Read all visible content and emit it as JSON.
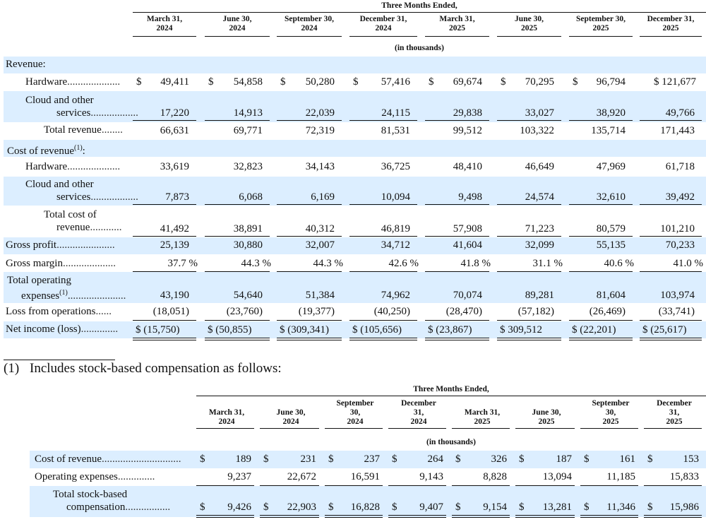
{
  "t1": {
    "header": "Three Months Ended,",
    "unit": "(in thousands)",
    "periods": [
      [
        "March 31,",
        "2024"
      ],
      [
        "June 30,",
        "2024"
      ],
      [
        "September 30,",
        "2024"
      ],
      [
        "December 31,",
        "2024"
      ],
      [
        "March 31,",
        "2025"
      ],
      [
        "June 30,",
        "2025"
      ],
      [
        "September 30,",
        "2025"
      ],
      [
        "December 31,",
        "2025"
      ]
    ],
    "rows": [
      {
        "label": [
          "Revenue:"
        ],
        "cells": []
      },
      {
        "label": [
          "Hardware"
        ],
        "cells": [
          "49,411",
          "54,858",
          "50,280",
          "57,416",
          "69,674",
          "70,295",
          "96,794",
          "$ 121,677"
        ],
        "cur": [
          "$",
          "$",
          "$",
          "$",
          "$",
          "$",
          "$",
          ""
        ]
      },
      {
        "label": [
          "Cloud and other",
          "services"
        ],
        "cells": [
          "17,220",
          "14,913",
          "22,039",
          "24,115",
          "29,838",
          "33,027",
          "38,920",
          "49,766"
        ]
      },
      {
        "label": [
          "Total revenue"
        ],
        "cells": [
          "66,631",
          "69,771",
          "72,319",
          "81,531",
          "99,512",
          "103,322",
          "135,714",
          "171,443"
        ]
      },
      {
        "label": [
          "Cost of revenue",
          "(1)",
          ":"
        ],
        "cells": []
      },
      {
        "label": [
          "Hardware"
        ],
        "cells": [
          "33,619",
          "32,823",
          "34,143",
          "36,725",
          "48,410",
          "46,649",
          "47,969",
          "61,718"
        ]
      },
      {
        "label": [
          "Cloud and other",
          "services"
        ],
        "cells": [
          "7,873",
          "6,068",
          "6,169",
          "10,094",
          "9,498",
          "24,574",
          "32,610",
          "39,492"
        ]
      },
      {
        "label": [
          "Total cost of",
          "revenue"
        ],
        "cells": [
          "41,492",
          "38,891",
          "40,312",
          "46,819",
          "57,908",
          "71,223",
          "80,579",
          "101,210"
        ]
      },
      {
        "label": [
          "Gross profit"
        ],
        "cells": [
          "25,139",
          "30,880",
          "32,007",
          "34,712",
          "41,604",
          "32,099",
          "55,135",
          "70,233"
        ]
      },
      {
        "label": [
          "Gross margin"
        ],
        "cells": [
          "37.7 %",
          "44.3 %",
          "44.3 %",
          "42.6 %",
          "41.8 %",
          "31.1 %",
          "40.6 %",
          "41.0 %"
        ]
      },
      {
        "label": [
          "Total operating",
          "expenses",
          "(1)"
        ],
        "cells": [
          "43,190",
          "54,640",
          "51,384",
          "74,962",
          "70,074",
          "89,281",
          "81,604",
          "103,974"
        ]
      },
      {
        "label": [
          "Loss from operations"
        ],
        "cells": [
          "(18,051)",
          "(23,760)",
          "(19,377)",
          "(40,250)",
          "(28,470)",
          "(57,182)",
          "(26,469)",
          "(33,741)"
        ]
      },
      {
        "label": [
          "Net income (loss)"
        ],
        "cells": [
          "$ (15,750)",
          "$ (50,855)",
          "$ (309,341)",
          "$ (105,656)",
          "$ (23,867)",
          "$ 309,512",
          "$ (22,201)",
          "$ (25,617)"
        ]
      }
    ]
  },
  "footnote": {
    "marker": "(1)",
    "text": "Includes stock-based compensation as follows:"
  },
  "t2": {
    "header": "Three Months Ended,",
    "unit": "(in thousands)",
    "periods": [
      [
        "March 31,",
        "2024"
      ],
      [
        "June 30,",
        "2024"
      ],
      [
        "September",
        "30,",
        "2024"
      ],
      [
        "December",
        "31,",
        "2024"
      ],
      [
        "March 31,",
        "2025"
      ],
      [
        "June 30,",
        "2025"
      ],
      [
        "September",
        "30,",
        "2025"
      ],
      [
        "December",
        "31,",
        "2025"
      ]
    ],
    "rows": [
      {
        "label": [
          "Cost of revenue"
        ],
        "cells": [
          "189",
          "231",
          "237",
          "264",
          "326",
          "187",
          "161",
          "153"
        ]
      },
      {
        "label": [
          "Operating expenses"
        ],
        "cells": [
          "9,237",
          "22,672",
          "16,591",
          "9,143",
          "8,828",
          "13,094",
          "11,185",
          "15,833"
        ]
      },
      {
        "label": [
          "Total stock-based",
          "compensation"
        ],
        "cells": [
          "9,426",
          "22,903",
          "16,828",
          "9,407",
          "9,154",
          "13,281",
          "11,346",
          "15,986"
        ]
      }
    ],
    "currency": "$"
  }
}
